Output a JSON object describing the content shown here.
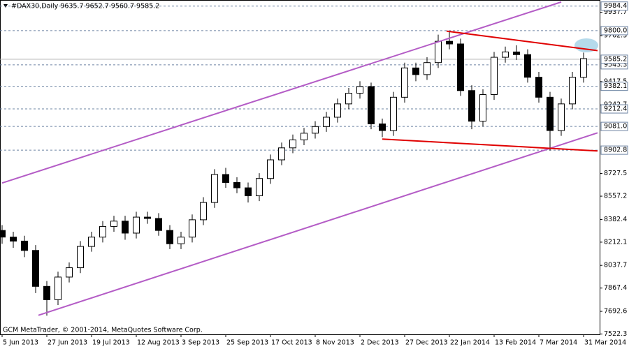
{
  "chart_data": {
    "type": "candlestick",
    "title": "#DAX30,Daily  9635.7 9652.7 9560.7 9585.2",
    "footer": "GCM MetaTrader, © 2001-2014, MetaQuotes Software Corp.",
    "x": [
      0,
      4,
      8,
      12,
      16,
      20,
      24,
      28,
      32,
      36,
      40,
      44,
      48,
      52,
      56,
      60,
      64,
      68,
      72,
      76,
      80,
      84,
      88,
      92,
      96,
      100,
      104,
      108,
      112,
      116,
      120,
      124,
      128,
      132,
      136,
      140,
      144,
      148,
      152,
      156,
      160,
      164,
      168,
      172,
      176,
      180,
      184,
      188,
      192,
      196,
      200,
      204,
      208
    ],
    "open": [
      8300,
      8250,
      8220,
      8150,
      7880,
      7780,
      7950,
      8020,
      8180,
      8250,
      8330,
      8370,
      8280,
      8400,
      8390,
      8300,
      8200,
      8250,
      8380,
      8510,
      8720,
      8660,
      8620,
      8560,
      8690,
      8830,
      8920,
      8980,
      9030,
      9080,
      9150,
      9250,
      9330,
      9380,
      9100,
      9050,
      9300,
      9520,
      9470,
      9560,
      9720,
      9700,
      9350,
      9120,
      9320,
      9600,
      9640,
      9620,
      9450,
      9300,
      9050,
      9250,
      9450
    ],
    "high": [
      8340,
      8290,
      8260,
      8190,
      7920,
      7990,
      8060,
      8220,
      8290,
      8370,
      8410,
      8410,
      8440,
      8440,
      8430,
      8340,
      8290,
      8420,
      8550,
      8760,
      8770,
      8700,
      8660,
      8730,
      8870,
      8960,
      9020,
      9070,
      9120,
      9190,
      9290,
      9370,
      9420,
      9410,
      9140,
      9340,
      9560,
      9560,
      9600,
      9770,
      9790,
      9740,
      9390,
      9360,
      9640,
      9680,
      9690,
      9660,
      9490,
      9340,
      9290,
      9490,
      9635
    ],
    "low": [
      8200,
      8170,
      8100,
      7830,
      7660,
      7740,
      7910,
      7980,
      8140,
      8210,
      8290,
      8230,
      8240,
      8350,
      8260,
      8160,
      8160,
      8210,
      8340,
      8470,
      8620,
      8580,
      8510,
      8520,
      8650,
      8790,
      8880,
      8940,
      8990,
      9040,
      9110,
      9210,
      9290,
      9060,
      9000,
      9010,
      9260,
      9420,
      9430,
      9520,
      9660,
      9310,
      9060,
      9080,
      9280,
      9560,
      9580,
      9410,
      9260,
      8900,
      9010,
      9210,
      9410
    ],
    "close": [
      8250,
      8220,
      8150,
      7880,
      7780,
      7950,
      8020,
      8180,
      8250,
      8330,
      8370,
      8280,
      8400,
      8390,
      8300,
      8200,
      8250,
      8380,
      8510,
      8720,
      8660,
      8620,
      8560,
      8690,
      8830,
      8920,
      8980,
      9030,
      9080,
      9150,
      9250,
      9330,
      9380,
      9100,
      9050,
      9300,
      9520,
      9470,
      9560,
      9720,
      9700,
      9350,
      9120,
      9320,
      9600,
      9640,
      9620,
      9450,
      9300,
      9050,
      9250,
      9450,
      9590
    ],
    "up_color": "#ffffff",
    "down_color": "#000000",
    "edge_color": "#000000",
    "xlim": [
      -0.75,
      213.75
    ],
    "xticks": [
      {
        "value": 0,
        "label": "5 Jun 2013"
      },
      {
        "value": 16,
        "label": "27 Jun 2013"
      },
      {
        "value": 32,
        "label": "19 Jul 2013"
      },
      {
        "value": 48,
        "label": "12 Aug 2013"
      },
      {
        "value": 64,
        "label": "3 Sep 2013"
      },
      {
        "value": 80,
        "label": "25 Sep 2013"
      },
      {
        "value": 96,
        "label": "17 Oct 2013"
      },
      {
        "value": 112,
        "label": "8 Nov 2013"
      },
      {
        "value": 128,
        "label": "2 Dec 2013"
      },
      {
        "value": 144,
        "label": "27 Dec 2013"
      },
      {
        "value": 160,
        "label": "22 Jan 2014"
      },
      {
        "value": 176,
        "label": "13 Feb 2014"
      },
      {
        "value": 192,
        "label": "7 Mar 2014"
      },
      {
        "value": 208,
        "label": "31 Mar 2014"
      }
    ],
    "ylim": [
      7520,
      10030
    ],
    "yticks": [
      7522.3,
      7692.6,
      7867.4,
      8037.7,
      8212.1,
      8382.4,
      8557.2,
      8727.5,
      9242.7,
      9417.5,
      9762.3,
      9937.7
    ],
    "levels": [
      9984.4,
      {
        "value": 9800,
        "label": "9800.0"
      },
      9543.3,
      9382.1,
      9212.4,
      {
        "value": 9081,
        "label": "9081.0"
      },
      8902.8
    ],
    "level_color": "#6e84a3",
    "last_price": 9585.2,
    "trendlines": [
      {
        "color": "#b45cc6",
        "x": [
          0,
          200
        ],
        "y": [
          8656,
          10015
        ]
      },
      {
        "color": "#b45cc6",
        "x": [
          13,
          213
        ],
        "y": [
          7663,
          9033
        ]
      },
      {
        "color": "#e00000",
        "x": [
          159,
          213
        ],
        "y": [
          9796,
          9650
        ]
      },
      {
        "color": "#e00000",
        "x": [
          136,
          213
        ],
        "y": [
          8986,
          8897
        ]
      }
    ]
  }
}
